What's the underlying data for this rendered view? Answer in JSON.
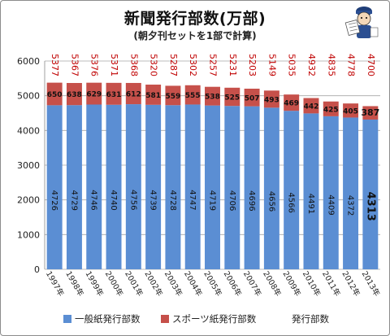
{
  "title": "新聞発行部数(万部)",
  "subtitle": "(朝夕刊セットを1部で計算)",
  "colors": {
    "general": "#5b8ed3",
    "sports": "#c6504a",
    "total": "#c00000",
    "grid": "#a6a6a6"
  },
  "legend": {
    "general": "一般紙発行部数",
    "sports": "スポーツ紙発行部数",
    "total": "発行部数"
  },
  "chart_data": {
    "type": "bar",
    "stacked": true,
    "categories": [
      "1997年",
      "1998年",
      "1999年",
      "2000年",
      "2001年",
      "2002年",
      "2003年",
      "2004年",
      "2005年",
      "2006年",
      "2007年",
      "2008年",
      "2009年",
      "2010年",
      "2011年",
      "2012年",
      "2013年"
    ],
    "series": [
      {
        "name": "一般紙発行部数",
        "values": [
          4726,
          4729,
          4746,
          4740,
          4756,
          4739,
          4728,
          4747,
          4719,
          4706,
          4696,
          4656,
          4566,
          4491,
          4409,
          4372,
          4313
        ]
      },
      {
        "name": "スポーツ紙発行部数",
        "values": [
          650,
          638,
          629,
          631,
          612,
          581,
          559,
          555,
          538,
          525,
          507,
          493,
          469,
          442,
          425,
          405,
          387
        ]
      }
    ],
    "totals": {
      "name": "発行部数",
      "values": [
        5377,
        5367,
        5376,
        5371,
        5368,
        5320,
        5287,
        5302,
        5257,
        5231,
        5203,
        5149,
        5035,
        4932,
        4835,
        4778,
        4700
      ]
    },
    "ylim": [
      0,
      6000
    ],
    "yticks": [
      0,
      1000,
      2000,
      3000,
      4000,
      5000,
      6000
    ],
    "grid": true,
    "legend_position": "bottom"
  }
}
